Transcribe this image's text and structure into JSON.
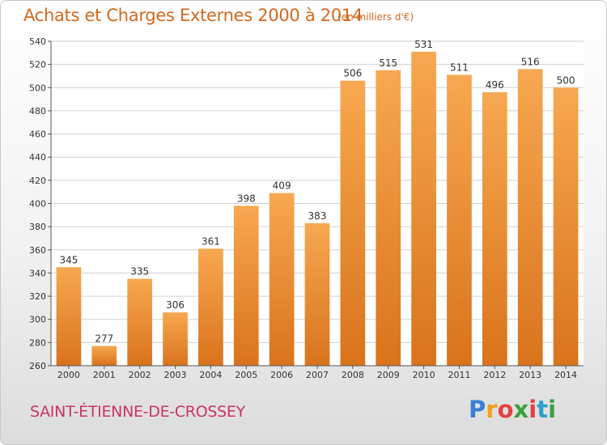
{
  "header": {
    "title": "Achats et Charges Externes 2000 à 2014",
    "subtitle": "(en milliers d'€)"
  },
  "footer": {
    "town": "SAINT-ÉTIENNE-DE-CROSSEY",
    "logo_letters": [
      "P",
      "r",
      "o",
      "x",
      "i",
      "t",
      "i"
    ],
    "logo_colors": [
      "#3a7fd5",
      "#f0a020",
      "#e84040",
      "#3aa040",
      "#e84040",
      "#2aa0d0",
      "#3aa040"
    ]
  },
  "colors": {
    "bar_light": "#f7a850",
    "bar_dark": "#d9731c",
    "grid": "#d0d0d0"
  },
  "chart_data": {
    "type": "bar",
    "title": "Achats et Charges Externes 2000 à 2014",
    "subtitle": "(en milliers d'€)",
    "categories": [
      "2000",
      "2001",
      "2002",
      "2003",
      "2004",
      "2005",
      "2006",
      "2007",
      "2008",
      "2009",
      "2010",
      "2011",
      "2012",
      "2013",
      "2014"
    ],
    "values": [
      345,
      277,
      335,
      306,
      361,
      398,
      409,
      383,
      506,
      515,
      531,
      511,
      496,
      516,
      500
    ],
    "ylim": [
      260,
      540
    ],
    "yticks": [
      260,
      280,
      300,
      320,
      340,
      360,
      380,
      400,
      420,
      440,
      460,
      480,
      500,
      520,
      540
    ],
    "grid": true,
    "xlabel": "",
    "ylabel": ""
  }
}
